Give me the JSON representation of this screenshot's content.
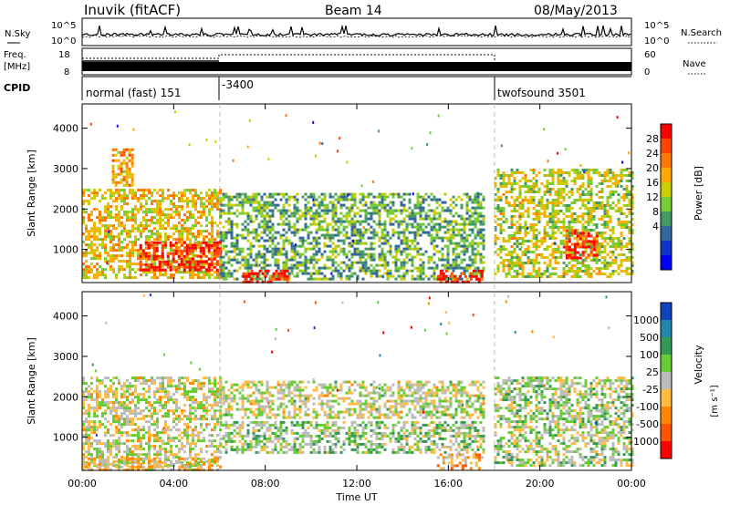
{
  "header": {
    "station": "Inuvik (fitACF)",
    "beam": "Beam 14",
    "date": "08/May/2013"
  },
  "noise_panel": {
    "left_label": "N.Sky",
    "right_label": "N.Search",
    "left_ticks": [
      "10^5",
      "10^0"
    ],
    "right_ticks": [
      "10^5",
      "10^0"
    ]
  },
  "freq_panel": {
    "left_label_line1": "Freq.",
    "left_label_line2": "[MHz]",
    "right_label": "Nave",
    "left_ticks": [
      "18",
      "8"
    ],
    "right_ticks": [
      "60",
      "0"
    ]
  },
  "cpid_panel": {
    "label": "CPID",
    "segments": [
      {
        "text": "normal (fast) 151",
        "start_hour": 0
      },
      {
        "text": "-3400",
        "start_hour": 6.0
      },
      {
        "text": "twofsound 3501",
        "start_hour": 18.0
      }
    ]
  },
  "power_panel": {
    "ylabel": "Slant Range [km]",
    "yticks": [
      "4000",
      "3000",
      "2000",
      "1000"
    ],
    "colorbar_title": "Power [dB]",
    "colorbar_ticks": [
      "28",
      "24",
      "20",
      "16",
      "12",
      "8",
      "4"
    ],
    "colors": [
      "#ff0000",
      "#ff4400",
      "#ff7700",
      "#ffaa00",
      "#cccc00",
      "#77cc33",
      "#449966",
      "#336699",
      "#1133cc",
      "#0000ff"
    ]
  },
  "velocity_panel": {
    "ylabel": "Slant Range [km]",
    "yticks": [
      "4000",
      "3000",
      "2000",
      "1000"
    ],
    "colorbar_title": "Velocity",
    "colorbar_unit": "[m s⁻¹]",
    "colorbar_ticks": [
      "1000",
      "500",
      "100",
      "25",
      "-25",
      "-100",
      "-500",
      "-1000"
    ],
    "colors": [
      "#1144bb",
      "#2288aa",
      "#339955",
      "#66cc33",
      "#bbbbbb",
      "#ffbb44",
      "#ff8800",
      "#ff5500",
      "#ff0000"
    ]
  },
  "x_axis": {
    "ticks": [
      "00:00",
      "04:00",
      "08:00",
      "12:00",
      "16:00",
      "20:00",
      "00:00"
    ],
    "label": "Time UT"
  },
  "chart_data": {
    "type": "heatmap",
    "title": "Inuvik (fitACF)",
    "subtitle": "Beam 14",
    "date": "08/May/2013",
    "xlabel": "Time UT",
    "ylabel": "Slant Range [km]",
    "xlim_hours": [
      0,
      24
    ],
    "ylim_km": [
      180,
      4600
    ],
    "mode_changes_hours": [
      6.0,
      18.0
    ],
    "panels": [
      {
        "name": "Power",
        "unit": "dB",
        "colorbar_range": [
          0,
          30
        ],
        "regions": [
          {
            "t0": 0.0,
            "t1": 6.0,
            "r0": 300,
            "r1": 2500,
            "typical_db": 18
          },
          {
            "t0": 1.3,
            "t1": 2.2,
            "r0": 2600,
            "r1": 3500,
            "typical_db": 20
          },
          {
            "t0": 6.0,
            "t1": 17.5,
            "r0": 300,
            "r1": 2400,
            "typical_db": 12
          },
          {
            "t0": 2.5,
            "t1": 6.0,
            "r0": 500,
            "r1": 1200,
            "typical_db": 28
          },
          {
            "t0": 7.0,
            "t1": 9.0,
            "r0": 200,
            "r1": 500,
            "typical_db": 28
          },
          {
            "t0": 15.5,
            "t1": 17.5,
            "r0": 200,
            "r1": 500,
            "typical_db": 28
          },
          {
            "t0": 18.0,
            "t1": 24.0,
            "r0": 300,
            "r1": 3000,
            "typical_db": 16
          },
          {
            "t0": 21.0,
            "t1": 22.5,
            "r0": 800,
            "r1": 1500,
            "typical_db": 26
          }
        ]
      },
      {
        "name": "Velocity",
        "unit": "m s-1",
        "colorbar_range": [
          -1000,
          1000
        ],
        "regions": [
          {
            "t0": 0.0,
            "t1": 6.0,
            "r0": 300,
            "r1": 2500,
            "typical_ms": -25
          },
          {
            "t0": 6.0,
            "t1": 17.5,
            "r0": 600,
            "r1": 1400,
            "typical_ms": 150
          },
          {
            "t0": 6.0,
            "t1": 17.5,
            "r0": 1500,
            "r1": 2400,
            "typical_ms": 0
          },
          {
            "t0": 0.0,
            "t1": 6.0,
            "r0": 200,
            "r1": 500,
            "typical_ms": -200
          },
          {
            "t0": 15.5,
            "t1": 17.5,
            "r0": 200,
            "r1": 600,
            "typical_ms": -300
          },
          {
            "t0": 18.0,
            "t1": 24.0,
            "r0": 300,
            "r1": 2500,
            "typical_ms": 100
          }
        ]
      }
    ]
  }
}
